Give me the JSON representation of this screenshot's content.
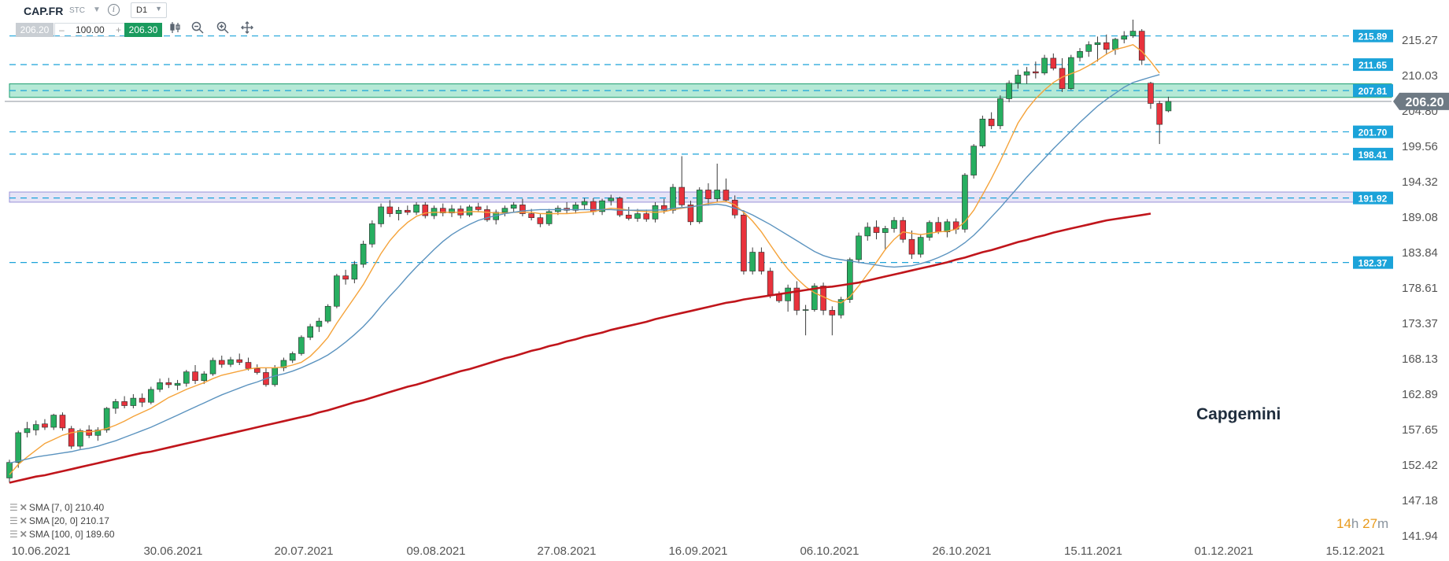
{
  "header": {
    "symbol": "CAP.FR",
    "exchange": "STC",
    "timeframe": "D1",
    "bid": "206.20",
    "quantity": "100.00",
    "ask": "206.30",
    "minus": "–",
    "plus": "+"
  },
  "watermark": "Capgemini",
  "timer": {
    "hours": "14",
    "h_unit": "h",
    "minutes": "27",
    "m_unit": "m"
  },
  "legend": [
    {
      "label": "SMA [7, 0] 210.40"
    },
    {
      "label": "SMA [20, 0] 210.17"
    },
    {
      "label": "SMA [100, 0] 189.60"
    }
  ],
  "colors": {
    "up": "#27ae60",
    "down": "#e8323c",
    "sma7": "#f5a33a",
    "sma20": "#5b93bf",
    "sma100": "#c0151b",
    "level_line": "#1ba3d9",
    "zone_green": "#2bbf8a",
    "zone_purple": "#b8b2e6",
    "price_tag": "#6e7a84"
  },
  "chart_data": {
    "type": "candlestick",
    "xlabel": "",
    "ylabel": "",
    "ylim": [
      141.94,
      217.5
    ],
    "y_ticks": [
      "215.27",
      "210.03",
      "204.80",
      "199.56",
      "194.32",
      "189.08",
      "183.84",
      "178.61",
      "173.37",
      "168.13",
      "162.89",
      "157.65",
      "152.42",
      "147.18",
      "141.94"
    ],
    "x_ticks": [
      "10.06.2021",
      "30.06.2021",
      "20.07.2021",
      "09.08.2021",
      "27.08.2021",
      "16.09.2021",
      "06.10.2021",
      "26.10.2021",
      "15.11.2021",
      "01.12.2021",
      "15.12.2021"
    ],
    "grid": false,
    "last_price": "206.20",
    "levels": [
      {
        "label": "215.89",
        "value": 215.89
      },
      {
        "label": "211.65",
        "value": 211.65
      },
      {
        "label": "207.81",
        "value": 207.81
      },
      {
        "label": "201.70",
        "value": 201.7
      },
      {
        "label": "198.41",
        "value": 198.41
      },
      {
        "label": "191.92",
        "value": 191.92
      },
      {
        "label": "182.37",
        "value": 182.37
      }
    ],
    "zones": [
      {
        "name": "resistance",
        "from": 206.8,
        "to": 208.8
      },
      {
        "name": "support",
        "from": 191.3,
        "to": 192.8
      }
    ],
    "candles": [
      [
        150.5,
        153.2,
        149.8,
        152.8
      ],
      [
        152.8,
        157.5,
        152.0,
        157.2
      ],
      [
        157.2,
        158.8,
        156.5,
        157.8
      ],
      [
        157.6,
        159.0,
        156.8,
        158.4
      ],
      [
        158.5,
        159.2,
        157.6,
        158.0
      ],
      [
        158.0,
        160.0,
        157.6,
        159.8
      ],
      [
        159.8,
        160.2,
        157.5,
        157.9
      ],
      [
        157.8,
        158.2,
        154.8,
        155.2
      ],
      [
        155.2,
        157.8,
        154.8,
        157.5
      ],
      [
        157.6,
        158.3,
        156.4,
        156.8
      ],
      [
        156.8,
        158.0,
        156.0,
        157.6
      ],
      [
        157.6,
        161.0,
        157.2,
        160.8
      ],
      [
        160.8,
        162.2,
        160.0,
        161.8
      ],
      [
        161.8,
        162.6,
        160.8,
        161.2
      ],
      [
        161.2,
        162.9,
        160.8,
        162.3
      ],
      [
        162.3,
        163.0,
        161.0,
        161.7
      ],
      [
        161.7,
        164.0,
        161.4,
        163.6
      ],
      [
        163.6,
        165.2,
        163.2,
        164.6
      ],
      [
        164.6,
        165.3,
        163.8,
        164.3
      ],
      [
        164.2,
        165.0,
        163.5,
        164.5
      ],
      [
        164.5,
        166.5,
        164.0,
        166.2
      ],
      [
        166.2,
        167.2,
        164.4,
        164.9
      ],
      [
        164.9,
        166.3,
        164.4,
        165.9
      ],
      [
        165.9,
        168.3,
        165.6,
        167.9
      ],
      [
        167.9,
        168.6,
        166.8,
        167.3
      ],
      [
        167.3,
        168.4,
        166.9,
        168.0
      ],
      [
        168.0,
        168.9,
        167.2,
        167.6
      ],
      [
        167.6,
        168.3,
        166.4,
        166.7
      ],
      [
        166.7,
        167.3,
        165.8,
        166.1
      ],
      [
        166.1,
        166.8,
        164.0,
        164.3
      ],
      [
        164.3,
        167.2,
        164.0,
        166.8
      ],
      [
        166.8,
        168.3,
        166.3,
        167.9
      ],
      [
        167.9,
        169.2,
        167.5,
        168.9
      ],
      [
        168.9,
        171.6,
        168.6,
        171.3
      ],
      [
        171.3,
        173.3,
        170.9,
        172.9
      ],
      [
        172.9,
        174.2,
        172.1,
        173.7
      ],
      [
        173.7,
        176.2,
        173.4,
        175.9
      ],
      [
        175.9,
        180.7,
        175.6,
        180.4
      ],
      [
        180.4,
        181.3,
        179.1,
        179.9
      ],
      [
        179.9,
        182.6,
        179.3,
        182.1
      ],
      [
        182.1,
        185.6,
        181.6,
        185.1
      ],
      [
        185.1,
        188.6,
        184.6,
        188.1
      ],
      [
        188.1,
        191.1,
        187.6,
        190.6
      ],
      [
        190.6,
        191.6,
        189.1,
        189.6
      ],
      [
        189.6,
        190.6,
        188.6,
        190.1
      ],
      [
        190.1,
        190.8,
        189.4,
        189.8
      ],
      [
        189.8,
        191.3,
        189.4,
        190.9
      ],
      [
        190.9,
        191.3,
        188.9,
        189.3
      ],
      [
        189.3,
        190.8,
        188.8,
        190.4
      ],
      [
        190.4,
        191.1,
        189.2,
        189.7
      ],
      [
        189.7,
        190.9,
        189.1,
        190.3
      ],
      [
        190.3,
        190.8,
        188.9,
        189.4
      ],
      [
        189.4,
        190.9,
        189.1,
        190.6
      ],
      [
        190.6,
        191.2,
        189.8,
        190.2
      ],
      [
        190.2,
        190.8,
        188.4,
        188.7
      ],
      [
        188.7,
        190.2,
        188.0,
        189.8
      ],
      [
        189.8,
        190.8,
        189.2,
        190.4
      ],
      [
        190.4,
        191.3,
        189.8,
        190.9
      ],
      [
        190.9,
        191.8,
        189.2,
        189.6
      ],
      [
        189.6,
        190.3,
        188.6,
        189.0
      ],
      [
        189.0,
        189.6,
        187.6,
        188.1
      ],
      [
        188.1,
        190.3,
        187.8,
        189.9
      ],
      [
        189.9,
        190.8,
        189.4,
        190.4
      ],
      [
        190.4,
        191.3,
        189.6,
        190.1
      ],
      [
        190.1,
        191.3,
        189.6,
        190.9
      ],
      [
        190.9,
        191.9,
        190.2,
        191.4
      ],
      [
        191.4,
        191.9,
        189.4,
        189.9
      ],
      [
        189.9,
        191.8,
        189.4,
        191.5
      ],
      [
        191.5,
        192.4,
        190.8,
        191.9
      ],
      [
        191.9,
        192.1,
        189.1,
        189.4
      ],
      [
        189.4,
        190.6,
        188.6,
        188.9
      ],
      [
        188.9,
        190.3,
        188.4,
        189.6
      ],
      [
        189.6,
        190.2,
        188.4,
        188.8
      ],
      [
        188.8,
        191.3,
        188.3,
        190.8
      ],
      [
        190.8,
        191.8,
        189.6,
        190.1
      ],
      [
        190.1,
        194.0,
        189.6,
        193.5
      ],
      [
        193.5,
        198.1,
        190.6,
        190.9
      ],
      [
        190.9,
        191.5,
        187.9,
        188.4
      ],
      [
        188.4,
        193.5,
        188.1,
        193.1
      ],
      [
        193.1,
        194.1,
        190.8,
        191.8
      ],
      [
        191.8,
        197.0,
        191.3,
        193.1
      ],
      [
        193.1,
        194.8,
        191.3,
        191.6
      ],
      [
        191.6,
        192.3,
        188.9,
        189.4
      ],
      [
        189.4,
        190.1,
        180.6,
        181.1
      ],
      [
        181.1,
        184.6,
        180.6,
        183.9
      ],
      [
        183.9,
        184.6,
        180.6,
        181.1
      ],
      [
        181.1,
        181.6,
        177.1,
        177.6
      ],
      [
        177.6,
        178.1,
        176.4,
        176.7
      ],
      [
        176.7,
        179.1,
        175.1,
        178.6
      ],
      [
        178.6,
        179.6,
        174.6,
        175.3
      ],
      [
        175.3,
        176.1,
        171.6,
        175.4
      ],
      [
        175.4,
        179.3,
        175.1,
        178.9
      ],
      [
        178.9,
        179.4,
        174.6,
        175.3
      ],
      [
        175.3,
        175.9,
        171.6,
        174.6
      ],
      [
        174.6,
        177.3,
        174.1,
        176.9
      ],
      [
        176.9,
        183.1,
        176.4,
        182.8
      ],
      [
        182.8,
        186.8,
        182.3,
        186.3
      ],
      [
        186.3,
        188.3,
        185.6,
        187.6
      ],
      [
        187.6,
        188.6,
        185.8,
        186.8
      ],
      [
        186.8,
        187.8,
        184.2,
        187.4
      ],
      [
        187.4,
        189.1,
        186.8,
        188.6
      ],
      [
        188.6,
        189.1,
        185.3,
        185.8
      ],
      [
        185.8,
        187.1,
        182.9,
        183.6
      ],
      [
        183.6,
        186.6,
        183.1,
        186.1
      ],
      [
        186.1,
        188.6,
        185.6,
        188.3
      ],
      [
        188.3,
        189.1,
        186.6,
        186.9
      ],
      [
        186.9,
        188.8,
        186.1,
        188.4
      ],
      [
        188.4,
        188.9,
        186.6,
        187.3
      ],
      [
        187.3,
        195.6,
        186.8,
        195.3
      ],
      [
        195.3,
        199.9,
        194.8,
        199.6
      ],
      [
        199.6,
        204.1,
        199.3,
        203.6
      ],
      [
        203.6,
        204.6,
        202.1,
        202.6
      ],
      [
        202.6,
        207.1,
        202.1,
        206.6
      ],
      [
        206.6,
        209.3,
        206.1,
        208.9
      ],
      [
        208.9,
        210.9,
        208.1,
        210.1
      ],
      [
        210.1,
        211.3,
        208.8,
        210.6
      ],
      [
        210.6,
        212.1,
        209.6,
        210.4
      ],
      [
        210.4,
        213.1,
        210.1,
        212.6
      ],
      [
        212.6,
        213.3,
        210.8,
        211.1
      ],
      [
        211.1,
        212.6,
        207.6,
        208.1
      ],
      [
        208.1,
        213.1,
        207.9,
        212.7
      ],
      [
        212.7,
        214.1,
        212.1,
        213.6
      ],
      [
        213.6,
        215.1,
        212.8,
        214.6
      ],
      [
        214.6,
        215.8,
        212.1,
        214.9
      ],
      [
        214.9,
        216.1,
        213.1,
        213.9
      ],
      [
        213.9,
        215.6,
        213.1,
        215.4
      ],
      [
        215.4,
        216.6,
        214.8,
        215.9
      ],
      [
        215.9,
        218.3,
        215.6,
        216.6
      ],
      [
        216.6,
        216.9,
        211.6,
        212.3
      ],
      [
        208.9,
        209.1,
        205.1,
        205.9
      ],
      [
        205.9,
        206.3,
        199.9,
        202.8
      ],
      [
        204.8,
        206.9,
        204.6,
        206.2
      ]
    ],
    "series": [
      {
        "name": "SMA [7, 0]",
        "values": [
          151.0,
          152.5,
          153.6,
          154.6,
          155.6,
          156.2,
          156.8,
          157.2,
          157.4,
          157.3,
          157.5,
          157.8,
          158.3,
          158.9,
          159.6,
          160.2,
          160.8,
          161.6,
          162.4,
          163.0,
          163.6,
          164.1,
          164.6,
          165.2,
          165.7,
          166.0,
          166.3,
          166.6,
          166.8,
          166.8,
          166.8,
          166.9,
          167.2,
          167.6,
          168.5,
          169.8,
          171.3,
          173.4,
          175.3,
          177.2,
          179.1,
          181.4,
          183.7,
          185.6,
          187.1,
          188.3,
          189.2,
          189.7,
          189.8,
          189.8,
          189.8,
          189.8,
          189.9,
          189.9,
          189.8,
          189.7,
          189.7,
          189.8,
          189.8,
          189.8,
          189.6,
          189.6,
          189.6,
          189.6,
          189.7,
          189.8,
          189.9,
          190.2,
          190.4,
          190.3,
          190.1,
          190.0,
          189.9,
          189.8,
          189.9,
          190.2,
          190.4,
          190.6,
          190.8,
          191.1,
          191.3,
          191.4,
          190.9,
          189.8,
          188.5,
          186.9,
          185.0,
          183.1,
          181.4,
          180.0,
          178.8,
          177.9,
          177.3,
          176.7,
          176.4,
          177.3,
          178.9,
          180.7,
          182.4,
          184.3,
          185.8,
          186.9,
          186.7,
          186.5,
          186.7,
          186.9,
          187.0,
          187.3,
          188.4,
          190.1,
          192.4,
          194.8,
          197.4,
          200.2,
          203.0,
          205.0,
          206.6,
          207.9,
          209.0,
          209.8,
          210.3,
          210.8,
          211.5,
          212.3,
          213.2,
          213.9,
          214.2,
          214.6,
          213.6,
          212.1,
          210.4
        ]
      },
      {
        "name": "SMA [20, 0]",
        "values": [
          152.7,
          153.0,
          153.3,
          153.6,
          153.8,
          154.0,
          154.2,
          154.4,
          154.7,
          154.9,
          155.2,
          155.6,
          156.0,
          156.5,
          157.0,
          157.5,
          158.0,
          158.6,
          159.2,
          159.8,
          160.4,
          161.0,
          161.6,
          162.2,
          162.8,
          163.3,
          163.8,
          164.3,
          164.7,
          165.2,
          165.6,
          165.9,
          166.3,
          166.8,
          167.4,
          168.0,
          168.7,
          169.6,
          170.6,
          171.7,
          172.9,
          174.3,
          175.9,
          177.4,
          178.8,
          180.3,
          181.7,
          183.0,
          184.3,
          185.5,
          186.5,
          187.3,
          188.0,
          188.6,
          189.0,
          189.3,
          189.6,
          189.8,
          190.0,
          190.1,
          190.2,
          190.2,
          190.2,
          190.2,
          190.2,
          190.2,
          190.2,
          190.2,
          190.2,
          190.1,
          190.1,
          190.1,
          190.1,
          190.1,
          190.2,
          190.4,
          190.5,
          190.6,
          190.8,
          190.9,
          191.0,
          190.8,
          190.4,
          190.0,
          189.4,
          188.7,
          188.0,
          187.2,
          186.4,
          185.6,
          184.8,
          184.0,
          183.4,
          183.0,
          182.8,
          182.6,
          182.4,
          182.2,
          182.0,
          181.8,
          181.7,
          181.8,
          181.9,
          182.2,
          182.6,
          183.1,
          183.7,
          184.4,
          185.3,
          186.4,
          187.7,
          189.1,
          190.5,
          192.0,
          193.5,
          195.0,
          196.4,
          197.8,
          199.2,
          200.5,
          201.8,
          203.1,
          204.3,
          205.5,
          206.5,
          207.4,
          208.3,
          209.0,
          209.4,
          209.8,
          210.17
        ]
      },
      {
        "name": "SMA [100, 0]",
        "values": [
          149.8,
          150.1,
          150.4,
          150.7,
          150.9,
          151.2,
          151.5,
          151.8,
          152.1,
          152.4,
          152.7,
          153.0,
          153.3,
          153.6,
          153.9,
          154.2,
          154.4,
          154.7,
          155.0,
          155.3,
          155.6,
          155.9,
          156.2,
          156.5,
          156.8,
          157.1,
          157.4,
          157.7,
          158.0,
          158.3,
          158.6,
          158.9,
          159.2,
          159.5,
          159.8,
          160.2,
          160.5,
          160.9,
          161.3,
          161.7,
          162.0,
          162.4,
          162.8,
          163.2,
          163.6,
          164.0,
          164.3,
          164.7,
          165.1,
          165.5,
          165.9,
          166.3,
          166.6,
          167.0,
          167.4,
          167.8,
          168.2,
          168.5,
          168.9,
          169.3,
          169.6,
          170.0,
          170.3,
          170.7,
          171.0,
          171.4,
          171.7,
          172.0,
          172.4,
          172.7,
          173.0,
          173.3,
          173.6,
          174.0,
          174.3,
          174.6,
          174.9,
          175.2,
          175.5,
          175.8,
          176.1,
          176.4,
          176.6,
          176.9,
          177.1,
          177.3,
          177.5,
          177.7,
          177.9,
          178.1,
          178.3,
          178.5,
          178.7,
          178.8,
          179.0,
          179.2,
          179.4,
          179.7,
          180.0,
          180.3,
          180.6,
          180.9,
          181.2,
          181.5,
          181.8,
          182.1,
          182.4,
          182.8,
          183.1,
          183.5,
          183.9,
          184.2,
          184.6,
          185.0,
          185.4,
          185.7,
          186.1,
          186.4,
          186.8,
          187.1,
          187.4,
          187.7,
          188.0,
          188.3,
          188.6,
          188.8,
          189.0,
          189.2,
          189.4,
          189.6
        ]
      }
    ]
  }
}
